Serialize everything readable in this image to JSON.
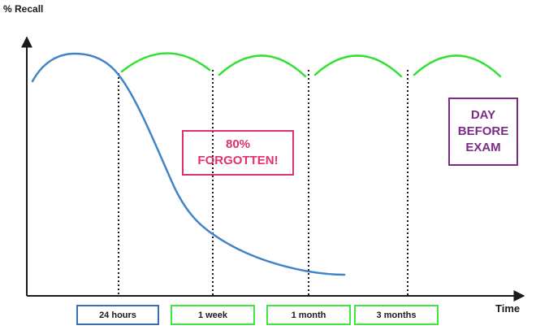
{
  "axis": {
    "y_label": "% Recall",
    "x_label": "Time"
  },
  "colors": {
    "forgetting_curve": "#3f84c8",
    "review_curve": "#33e033",
    "forgotten_callout": "#e0306e",
    "exam_callout": "#7b2d86",
    "axis": "#1a1a1a",
    "first_interval_box": "#3a6fb5",
    "interval_box": "#3ee63e"
  },
  "callouts": {
    "forgotten": "80%\nFORGOTTEN!",
    "exam": "DAY\nBEFORE\nEXAM"
  },
  "intervals": [
    "24 hours",
    "1 week",
    "1 month",
    "3 months"
  ]
}
